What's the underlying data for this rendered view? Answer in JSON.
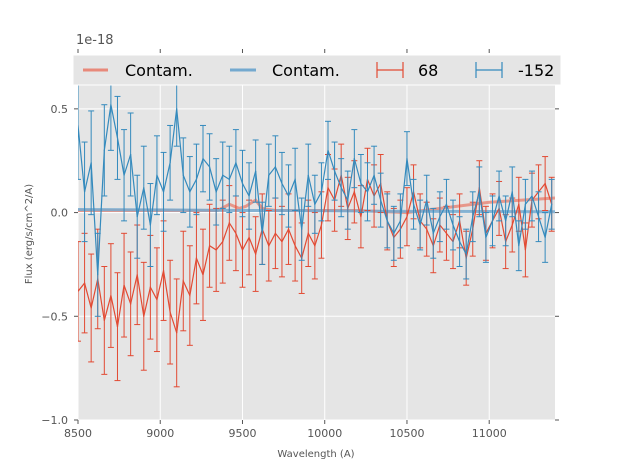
{
  "chart_data": {
    "type": "line",
    "title": "",
    "xlabel": "Wavelength (A)",
    "ylabel": "Flux (erg/s/cm^2/A)",
    "y_offset_label": "1e-18",
    "xlim": [
      8500,
      11400
    ],
    "ylim": [
      -1.0,
      0.75
    ],
    "x_ticks": [
      8500,
      9000,
      9500,
      10000,
      10500,
      11000
    ],
    "x_tick_labels": [
      "8500",
      "9000",
      "9500",
      "10000",
      "10500",
      "11000"
    ],
    "y_ticks": [
      0.5,
      0.0,
      -0.5,
      -1.0
    ],
    "y_tick_labels": [
      "0.5",
      "0.0",
      "−0.5",
      "−1.0"
    ],
    "grid": true,
    "style": "ggplot",
    "legend": {
      "placement": "top",
      "entries": [
        {
          "label": "Contam.",
          "kind": "line",
          "color": "#E8897A"
        },
        {
          "label": "Contam.",
          "kind": "line",
          "color": "#74A9CF"
        },
        {
          "label": "68",
          "kind": "errorbar",
          "color": "#E24A33"
        },
        {
          "label": "-152",
          "kind": "errorbar",
          "color": "#348ABD"
        }
      ]
    },
    "x": [
      8500,
      8540,
      8580,
      8620,
      8660,
      8700,
      8740,
      8780,
      8820,
      8860,
      8900,
      8940,
      8980,
      9020,
      9060,
      9100,
      9140,
      9180,
      9220,
      9260,
      9300,
      9340,
      9380,
      9420,
      9460,
      9500,
      9540,
      9580,
      9620,
      9660,
      9700,
      9740,
      9780,
      9820,
      9860,
      9900,
      9940,
      9980,
      10020,
      10060,
      10100,
      10140,
      10180,
      10220,
      10260,
      10300,
      10340,
      10380,
      10420,
      10460,
      10500,
      10540,
      10580,
      10620,
      10660,
      10700,
      10740,
      10780,
      10820,
      10860,
      10900,
      10940,
      10980,
      11020,
      11060,
      11100,
      11140,
      11180,
      11220,
      11260,
      11300,
      11340,
      11380
    ],
    "series": [
      {
        "name": "68",
        "kind": "errorbar",
        "color": "#E24A33",
        "y": [
          -0.38,
          -0.34,
          -0.46,
          -0.32,
          -0.52,
          -0.4,
          -0.55,
          -0.35,
          -0.44,
          -0.3,
          -0.5,
          -0.36,
          -0.42,
          -0.28,
          -0.48,
          -0.58,
          -0.33,
          -0.4,
          -0.22,
          -0.3,
          -0.16,
          -0.18,
          -0.14,
          -0.05,
          -0.1,
          -0.18,
          -0.12,
          -0.2,
          -0.08,
          -0.16,
          -0.1,
          -0.14,
          -0.08,
          -0.16,
          -0.22,
          -0.1,
          -0.16,
          -0.06,
          0.12,
          0.06,
          0.18,
          0.02,
          0.1,
          -0.02,
          0.16,
          0.08,
          0.14,
          -0.04,
          -0.12,
          -0.08,
          -0.02,
          0.1,
          -0.04,
          -0.08,
          -0.16,
          -0.06,
          -0.1,
          -0.14,
          -0.04,
          -0.22,
          -0.08,
          0.12,
          -0.1,
          -0.04,
          0.02,
          -0.14,
          -0.06,
          0.04,
          -0.18,
          0.06,
          0.1,
          0.14,
          0.04
        ],
        "err": [
          0.24,
          0.24,
          0.26,
          0.24,
          0.26,
          0.25,
          0.26,
          0.25,
          0.25,
          0.24,
          0.26,
          0.25,
          0.25,
          0.24,
          0.25,
          0.26,
          0.24,
          0.24,
          0.22,
          0.22,
          0.2,
          0.2,
          0.2,
          0.18,
          0.18,
          0.18,
          0.18,
          0.18,
          0.17,
          0.17,
          0.17,
          0.17,
          0.17,
          0.17,
          0.17,
          0.16,
          0.16,
          0.16,
          0.16,
          0.15,
          0.15,
          0.15,
          0.15,
          0.15,
          0.15,
          0.15,
          0.14,
          0.14,
          0.14,
          0.14,
          0.14,
          0.13,
          0.13,
          0.13,
          0.13,
          0.13,
          0.13,
          0.13,
          0.13,
          0.13,
          0.13,
          0.13,
          0.13,
          0.13,
          0.13,
          0.13,
          0.13,
          0.13,
          0.13,
          0.13,
          0.13,
          0.13,
          0.13
        ]
      },
      {
        "name": "-152",
        "kind": "errorbar",
        "color": "#348ABD",
        "y": [
          0.42,
          0.1,
          0.24,
          -0.3,
          0.3,
          0.52,
          0.36,
          0.18,
          0.28,
          -0.02,
          0.12,
          -0.06,
          0.18,
          0.1,
          0.24,
          0.5,
          0.18,
          0.1,
          0.16,
          0.26,
          0.22,
          0.1,
          0.18,
          0.16,
          0.24,
          0.14,
          0.08,
          0.2,
          -0.1,
          0.18,
          0.22,
          0.14,
          0.08,
          0.16,
          -0.08,
          0.18,
          0.04,
          0.1,
          0.3,
          0.2,
          0.12,
          0.06,
          0.26,
          0.14,
          0.1,
          0.18,
          0.06,
          -0.04,
          -0.1,
          -0.04,
          0.26,
          0.04,
          -0.06,
          0.06,
          -0.1,
          -0.02,
          0.04,
          -0.06,
          -0.14,
          -0.2,
          -0.02,
          0.1,
          -0.12,
          -0.04,
          0.08,
          -0.04,
          0.1,
          -0.16,
          0.04,
          0.08,
          -0.02,
          -0.12,
          0.04
        ],
        "err": [
          0.26,
          0.24,
          0.25,
          0.2,
          0.22,
          0.22,
          0.2,
          0.22,
          0.2,
          0.2,
          0.2,
          0.2,
          0.19,
          0.19,
          0.18,
          0.18,
          0.18,
          0.17,
          0.17,
          0.16,
          0.16,
          0.16,
          0.16,
          0.16,
          0.16,
          0.16,
          0.16,
          0.15,
          0.15,
          0.15,
          0.15,
          0.15,
          0.15,
          0.15,
          0.15,
          0.15,
          0.14,
          0.14,
          0.14,
          0.14,
          0.14,
          0.14,
          0.14,
          0.14,
          0.14,
          0.14,
          0.13,
          0.13,
          0.13,
          0.13,
          0.13,
          0.12,
          0.12,
          0.12,
          0.12,
          0.12,
          0.12,
          0.12,
          0.12,
          0.12,
          0.12,
          0.12,
          0.12,
          0.12,
          0.12,
          0.12,
          0.12,
          0.12,
          0.12,
          0.12,
          0.12,
          0.12,
          0.12
        ]
      },
      {
        "name": "Contam.",
        "kind": "line",
        "color": "#E8897A",
        "x": [
          8500,
          9350,
          9420,
          9480,
          9520,
          9580,
          9620,
          9700,
          10200,
          10500,
          10600,
          10800,
          11000,
          11200,
          11400
        ],
        "y": [
          0.01,
          0.01,
          0.04,
          0.02,
          0.03,
          0.06,
          0.02,
          0.01,
          0.01,
          0.0,
          0.01,
          0.03,
          0.05,
          0.06,
          0.07
        ]
      },
      {
        "name": "Contam.",
        "kind": "line",
        "color": "#74A9CF",
        "x": [
          8500,
          9000,
          9500,
          10000,
          10500,
          11000,
          11400
        ],
        "y": [
          0.015,
          0.013,
          0.01,
          0.008,
          0.006,
          0.005,
          0.004
        ]
      }
    ]
  }
}
